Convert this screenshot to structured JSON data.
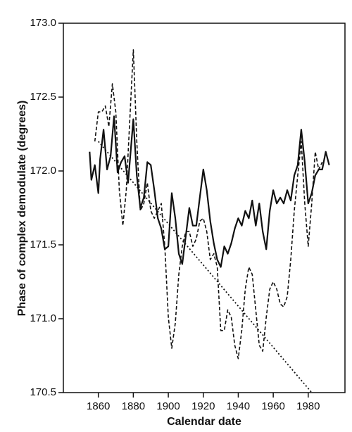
{
  "chart_data": {
    "type": "line",
    "xlabel": "Calendar date",
    "ylabel": "Phase of complex demodulate (degrees)",
    "xlim": [
      1840,
      2001
    ],
    "ylim": [
      170.5,
      173.0
    ],
    "xticks": [
      1860,
      1880,
      1900,
      1920,
      1940,
      1960,
      1980
    ],
    "yticks": [
      170.5,
      {
        "value": 171.0,
        "label": "171.0"
      },
      171.5,
      {
        "value": 172.0,
        "label": "172.0"
      },
      172.5,
      {
        "value": 173.0,
        "label": "173.0"
      }
    ],
    "series": [
      {
        "style": "solid",
        "color": "#111111",
        "x": [
          1855,
          1856,
          1858,
          1860,
          1861,
          1863,
          1865,
          1867,
          1869,
          1871,
          1873,
          1875,
          1877,
          1880,
          1882,
          1884,
          1886,
          1888,
          1890,
          1892,
          1894,
          1896,
          1898,
          1900,
          1902,
          1904,
          1906,
          1908,
          1910,
          1912,
          1914,
          1916,
          1918,
          1920,
          1922,
          1924,
          1926,
          1928,
          1930,
          1932,
          1934,
          1936,
          1938,
          1940,
          1942,
          1944,
          1946,
          1948,
          1950,
          1952,
          1954,
          1956,
          1958,
          1960,
          1962,
          1964,
          1966,
          1968,
          1970,
          1972,
          1974,
          1976,
          1978,
          1980,
          1982,
          1984,
          1986,
          1988,
          1990,
          1992
        ],
        "values": [
          172.13,
          171.94,
          172.04,
          171.85,
          172.08,
          172.28,
          172.01,
          172.1,
          172.37,
          171.99,
          172.06,
          172.1,
          171.92,
          172.35,
          171.97,
          171.75,
          171.82,
          172.06,
          172.04,
          171.87,
          171.68,
          171.61,
          171.47,
          171.49,
          171.85,
          171.68,
          171.44,
          171.37,
          171.56,
          171.75,
          171.63,
          171.63,
          171.82,
          172.01,
          171.87,
          171.66,
          171.51,
          171.4,
          171.35,
          171.49,
          171.44,
          171.51,
          171.61,
          171.68,
          171.63,
          171.73,
          171.68,
          171.8,
          171.63,
          171.78,
          171.59,
          171.47,
          171.73,
          171.87,
          171.78,
          171.82,
          171.78,
          171.87,
          171.8,
          171.97,
          172.04,
          172.28,
          172.06,
          171.78,
          171.85,
          171.97,
          172.01,
          172.01,
          172.13,
          172.04
        ]
      },
      {
        "style": "dashed",
        "color": "#111111",
        "x": [
          1858,
          1860,
          1862,
          1864,
          1866,
          1868,
          1870,
          1872,
          1874,
          1876,
          1878,
          1880,
          1882,
          1884,
          1886,
          1888,
          1890,
          1892,
          1894,
          1896,
          1898,
          1900,
          1902,
          1904,
          1906,
          1908,
          1910,
          1912,
          1914,
          1916,
          1918,
          1920,
          1922,
          1924,
          1926,
          1928,
          1930,
          1932,
          1934,
          1936,
          1938,
          1940,
          1942,
          1944,
          1946,
          1948,
          1950,
          1952,
          1954,
          1956,
          1958,
          1960,
          1962,
          1964,
          1966,
          1968,
          1970,
          1972,
          1974,
          1976,
          1978,
          1980,
          1982,
          1984,
          1986,
          1988
        ],
        "values": [
          172.2,
          172.4,
          172.4,
          172.44,
          172.3,
          172.59,
          172.4,
          171.87,
          171.63,
          171.87,
          172.35,
          172.82,
          172.2,
          171.73,
          171.78,
          171.92,
          171.73,
          171.68,
          171.73,
          171.78,
          171.49,
          171.01,
          170.8,
          170.97,
          171.3,
          171.49,
          171.59,
          171.59,
          171.49,
          171.54,
          171.66,
          171.68,
          171.59,
          171.4,
          171.44,
          171.35,
          170.92,
          170.92,
          171.06,
          171.01,
          170.82,
          170.73,
          170.92,
          171.2,
          171.35,
          171.3,
          171.06,
          170.82,
          170.78,
          171.01,
          171.2,
          171.25,
          171.2,
          171.1,
          171.08,
          171.15,
          171.4,
          171.73,
          171.97,
          172.2,
          171.78,
          171.49,
          171.78,
          172.13,
          172.01,
          172.06
        ]
      },
      {
        "style": "dotted",
        "color": "#111111",
        "x": [
          1860,
          1982
        ],
        "values": [
          172.2,
          170.5
        ]
      }
    ]
  }
}
